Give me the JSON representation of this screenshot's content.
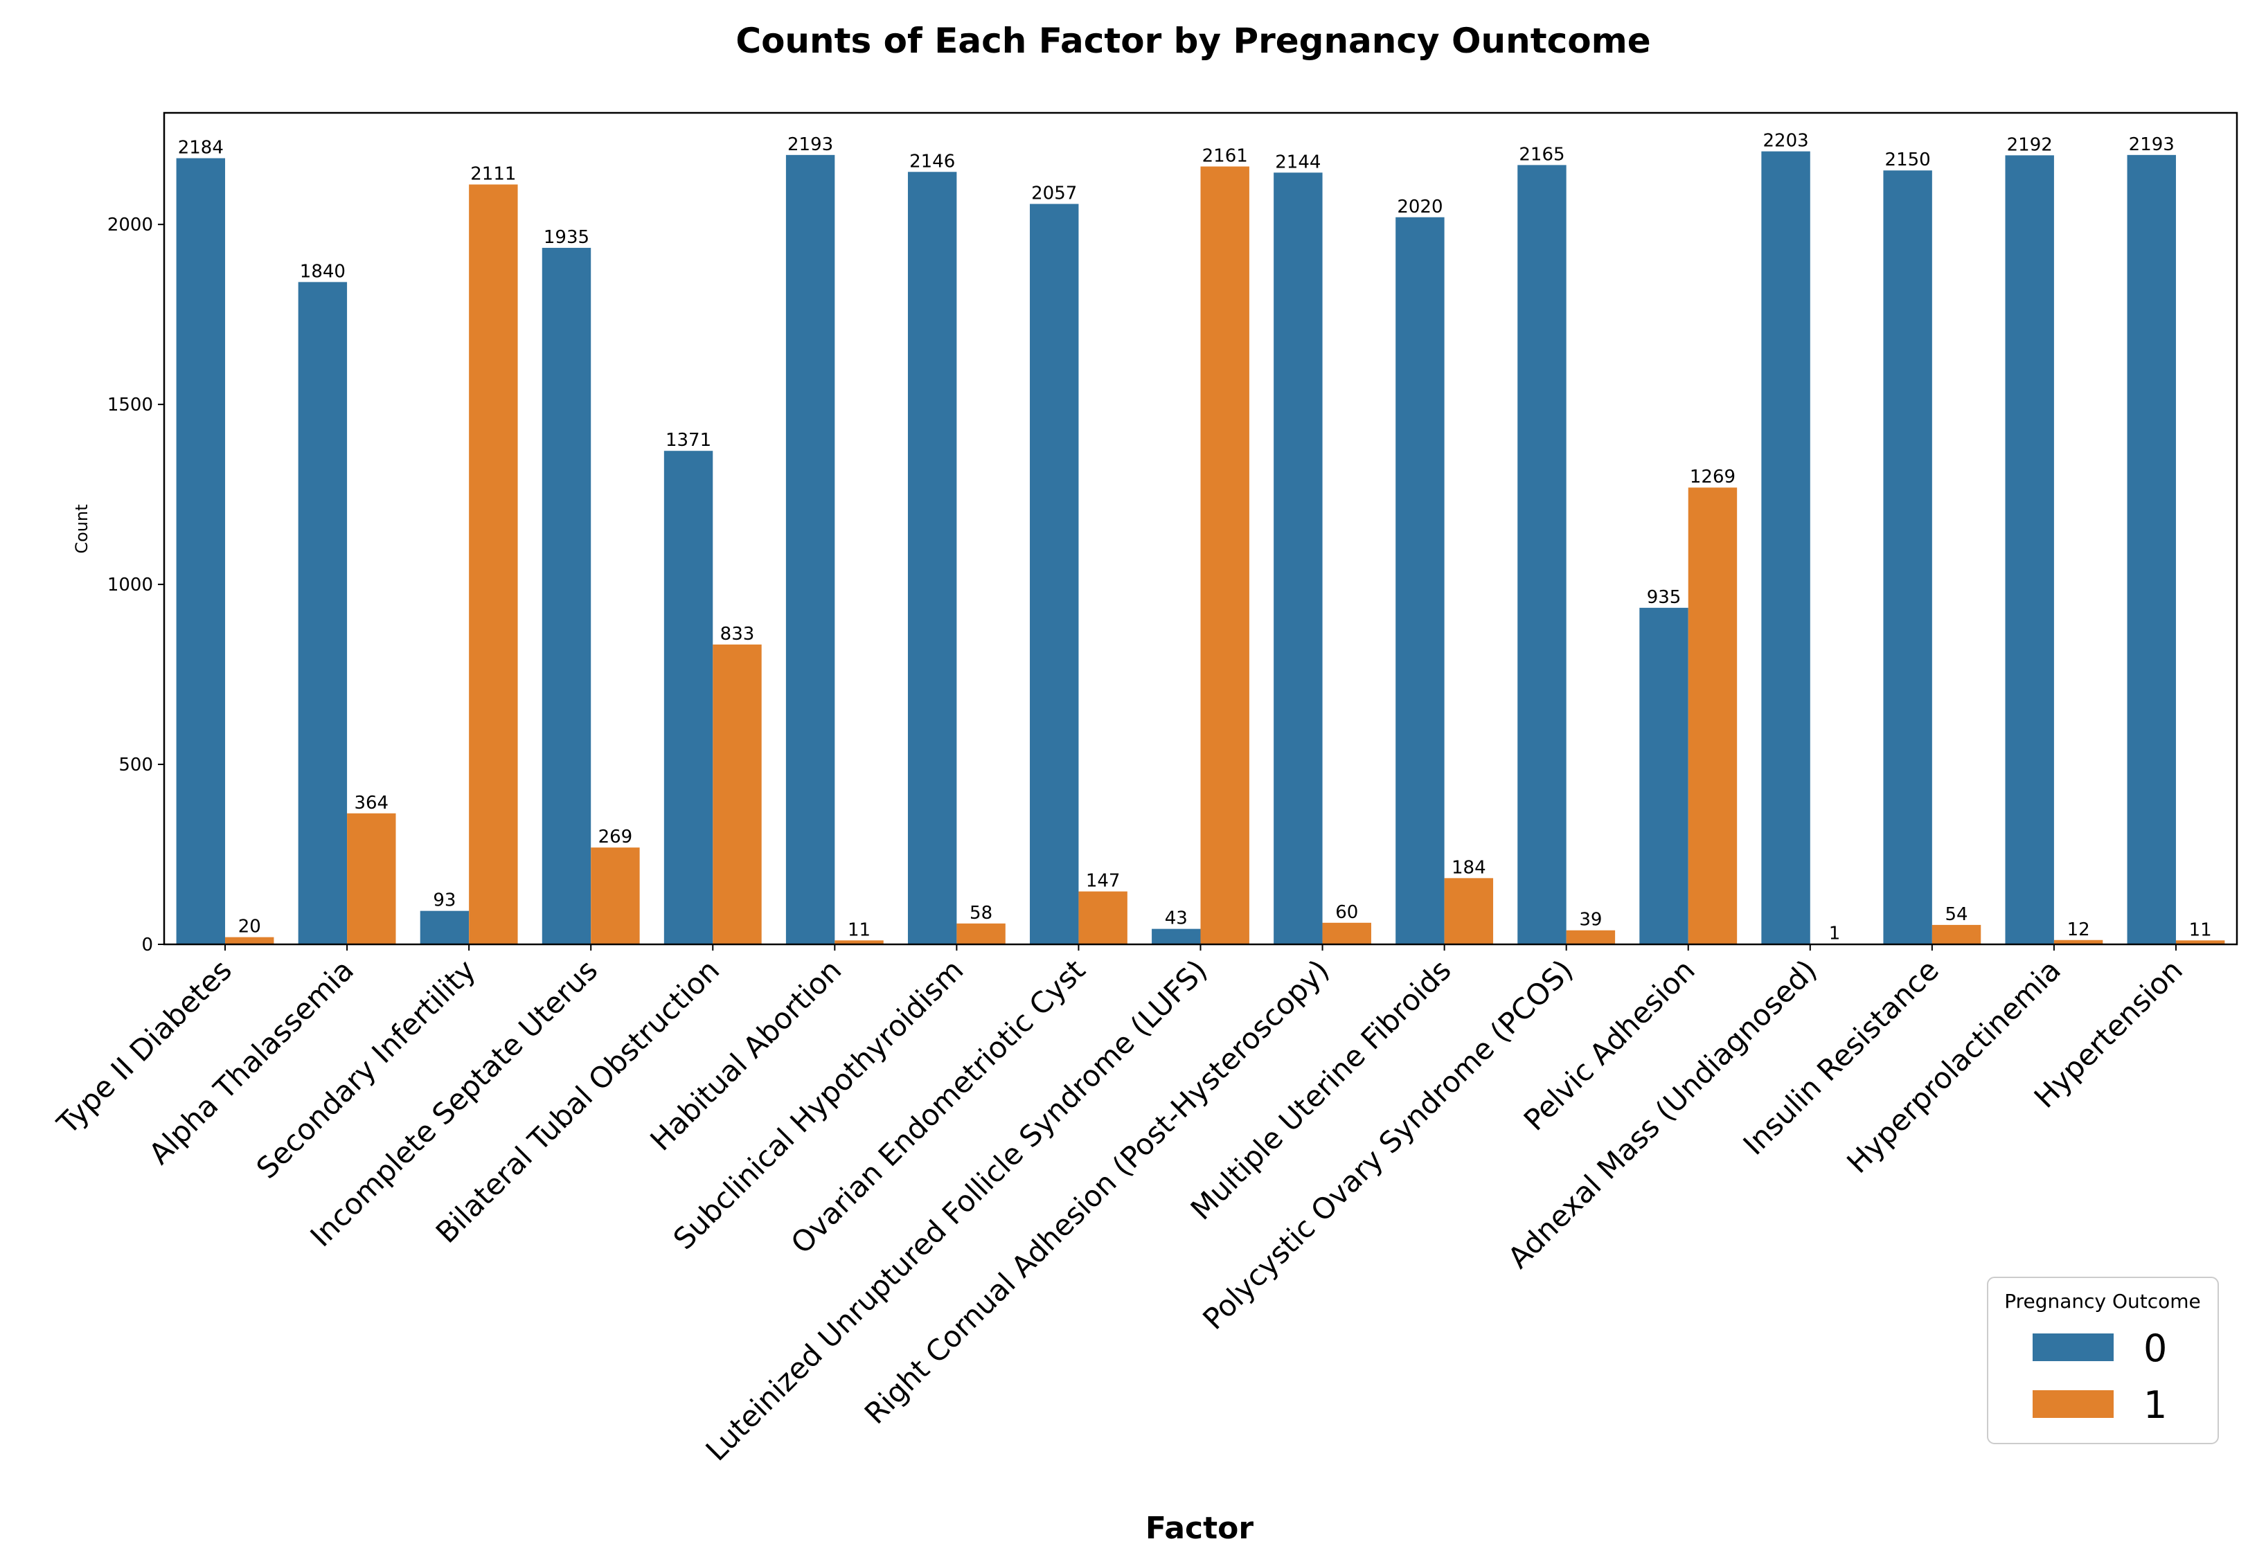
{
  "chart_data": {
    "type": "bar",
    "title": "Counts of Each Factor by Pregnancy Ountcome",
    "xlabel": "Factor",
    "ylabel": "Count",
    "ylim": [
      0,
      2310
    ],
    "yticks": [
      0,
      500,
      1000,
      1500,
      2000
    ],
    "grid": false,
    "categories": [
      "Type II Diabetes",
      "Alpha Thalassemia",
      "Secondary Infertility",
      "Incomplete Septate Uterus",
      "Bilateral Tubal Obstruction",
      "Habitual Abortion",
      "Subclinical Hypothyroidism",
      "Ovarian Endometriotic Cyst",
      "Luteinized Unruptured Follicle Syndrome (LUFS)",
      "Right Cornual Adhesion (Post-Hysteroscopy)",
      "Multiple Uterine Fibroids",
      "Polycystic Ovary Syndrome (PCOS)",
      "Pelvic Adhesion",
      "Adnexal Mass (Undiagnosed)",
      "Insulin Resistance",
      "Hyperprolactinemia",
      "Hypertension"
    ],
    "series": [
      {
        "name": "0",
        "color": "#3274a1",
        "values": [
          2184,
          1840,
          93,
          1935,
          1371,
          2193,
          2146,
          2057,
          43,
          2144,
          2020,
          2165,
          935,
          2203,
          2150,
          2192,
          2193
        ]
      },
      {
        "name": "1",
        "color": "#e1812c",
        "values": [
          20,
          364,
          2111,
          269,
          833,
          11,
          58,
          147,
          2161,
          60,
          184,
          39,
          1269,
          1,
          54,
          12,
          11
        ]
      }
    ],
    "legend": {
      "title": "Pregnancy Outcome",
      "position": "bottom-right"
    }
  }
}
